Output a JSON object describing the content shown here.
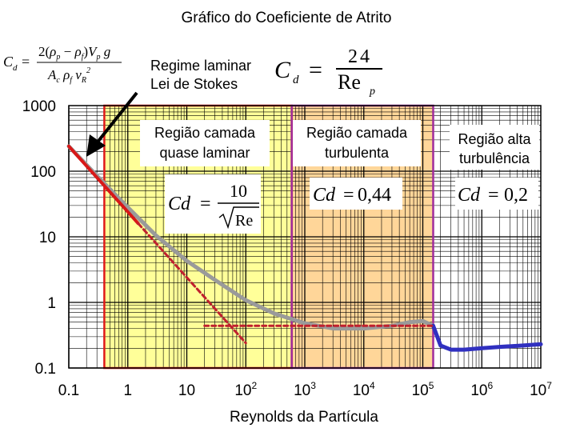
{
  "chart_data": {
    "type": "line",
    "title": "Gráfico do Coeficiente de Atrito",
    "xlabel": "Reynolds da Partícula",
    "ylabel": "",
    "x_scale": "log",
    "y_scale": "log",
    "xlim": [
      0.1,
      10000000
    ],
    "ylim": [
      0.1,
      1000
    ],
    "grid": true,
    "x_ticks": [
      {
        "value": 0.1,
        "label": "0.1"
      },
      {
        "value": 1,
        "label": "1"
      },
      {
        "value": 10,
        "label": "10"
      },
      {
        "value": 100,
        "base": "10",
        "exp": "2"
      },
      {
        "value": 1000,
        "base": "10",
        "exp": "3"
      },
      {
        "value": 10000,
        "base": "10",
        "exp": "4"
      },
      {
        "value": 100000,
        "base": "10",
        "exp": "5"
      },
      {
        "value": 1000000,
        "base": "10",
        "exp": "6"
      },
      {
        "value": 10000000,
        "base": "10",
        "exp": "7"
      }
    ],
    "y_ticks": [
      {
        "value": 0.1,
        "label": "0.1"
      },
      {
        "value": 1,
        "label": "1"
      },
      {
        "value": 10,
        "label": "10"
      },
      {
        "value": 100,
        "label": "100"
      },
      {
        "value": 1000,
        "label": "1000"
      }
    ],
    "series": [
      {
        "style": "measured-curve",
        "segment": "subcritical",
        "color": "#9a9a9a",
        "x": [
          0.1,
          0.3,
          1,
          3,
          10,
          30,
          100,
          300,
          1000,
          3000,
          10000,
          30000,
          60000,
          100000,
          150000
        ],
        "y": [
          240,
          85,
          28,
          10.5,
          4.3,
          2.2,
          1.08,
          0.68,
          0.48,
          0.4,
          0.4,
          0.44,
          0.5,
          0.52,
          0.44
        ]
      },
      {
        "style": "measured-curve",
        "segment": "drag-crisis",
        "color": "#3030c0",
        "x": [
          150000,
          200000,
          300000,
          500000,
          1000000,
          2000000,
          5000000,
          10000000
        ],
        "y": [
          0.44,
          0.22,
          0.19,
          0.19,
          0.2,
          0.21,
          0.22,
          0.23
        ]
      },
      {
        "style": "stokes-line",
        "color": "#d81818",
        "x": [
          0.1,
          1,
          1.5
        ],
        "y": [
          240,
          24,
          16
        ]
      },
      {
        "style": "stokes-extension",
        "color": "#c0202e",
        "x": [
          1.5,
          100
        ],
        "y": [
          16,
          0.24
        ]
      },
      {
        "style": "newton-line",
        "color": "#c0202e",
        "x": [
          20,
          150000
        ],
        "y": [
          0.44,
          0.44
        ]
      }
    ],
    "regions": [
      {
        "name": "Região camada quase laminar",
        "x_range": [
          0.4,
          600
        ],
        "fill": "#ffff99",
        "border": "#e01818"
      },
      {
        "name": "Região camada turbulenta",
        "x_range": [
          600,
          150000
        ],
        "fill": "#ffd699",
        "border": "#a02c9c"
      },
      {
        "name": "Região alta turbulência",
        "x_range": [
          150000,
          10000000
        ],
        "fill": "#ffffff",
        "border": "none"
      }
    ],
    "annotations": {
      "regime_laminar": [
        "Regime laminar",
        "Lei de Stokes"
      ],
      "stokes_formula": {
        "lhs": "C",
        "lhs_sub": "d",
        "eq": "=",
        "num": "24",
        "den": "Re",
        "den_sub": "p"
      },
      "general_formula": "C_d = 2(ρ_p − ρ_f)V_p g / (A_c ρ_f v_R²)",
      "box_quase_laminar": [
        "Região camada",
        "quase laminar"
      ],
      "box_turbulenta": [
        "Região camada",
        "turbulenta"
      ],
      "box_alta": [
        "Região alta",
        "turbulência"
      ],
      "eq_laminar": {
        "lhs": "Cd",
        "eq": "=",
        "num": "10",
        "den": "Re"
      },
      "eq_turbulenta": {
        "lhs": "Cd",
        "eq": "=",
        "value": "0,44"
      },
      "eq_alta": {
        "lhs": "Cd",
        "eq": "=",
        "value": "0,2"
      }
    }
  }
}
